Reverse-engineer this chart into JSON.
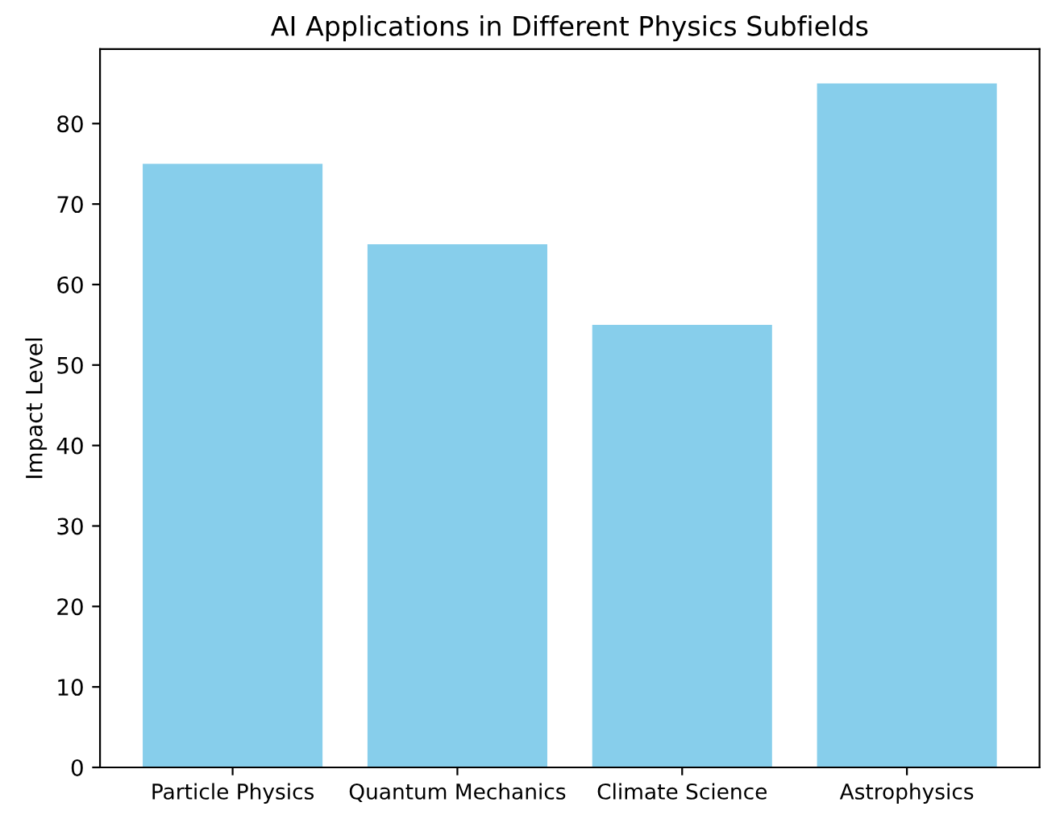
{
  "chart_data": {
    "type": "bar",
    "title": "AI Applications in Different Physics Subfields",
    "ylabel": "Impact Level",
    "categories": [
      "Particle Physics",
      "Quantum Mechanics",
      "Climate Science",
      "Astrophysics"
    ],
    "values": [
      75,
      65,
      55,
      85
    ],
    "color": "#87ceeb",
    "ylim": [
      0,
      89.25
    ],
    "yticks": [
      0,
      10,
      20,
      30,
      40,
      50,
      60,
      70,
      80
    ],
    "grid": false
  }
}
